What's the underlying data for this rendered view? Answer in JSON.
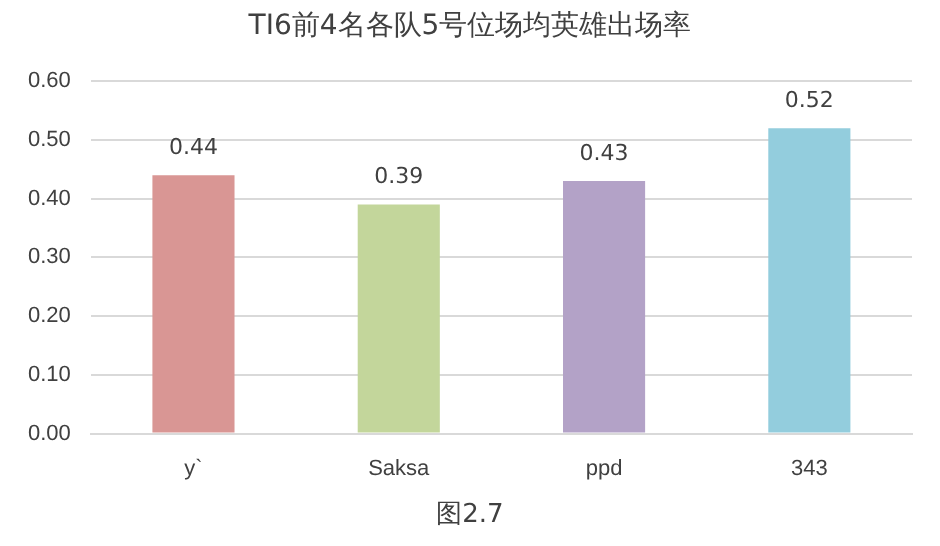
{
  "chart_data": {
    "type": "bar",
    "title": "TI6前4名各队5号位场均英雄出场率",
    "categories": [
      "y`",
      "Saksa",
      "ppd",
      "343"
    ],
    "values": [
      0.44,
      0.39,
      0.43,
      0.52
    ],
    "colors": [
      "#d99694",
      "#c3d69b",
      "#b3a2c7",
      "#93cddd"
    ],
    "ylim": [
      0,
      0.6
    ],
    "yticks": [
      {
        "value": 0,
        "label": "0.00"
      },
      {
        "value": 0.1,
        "label": "0.10"
      },
      {
        "value": 0.2,
        "label": "0.20"
      },
      {
        "value": 0.3,
        "label": "0.30"
      },
      {
        "value": 0.4,
        "label": "0.40"
      },
      {
        "value": 0.5,
        "label": "0.50"
      },
      {
        "value": 0.6,
        "label": "0.60"
      }
    ],
    "grid": "y",
    "legend": false,
    "data_labels": true,
    "annotations": [
      "图2.7"
    ]
  }
}
